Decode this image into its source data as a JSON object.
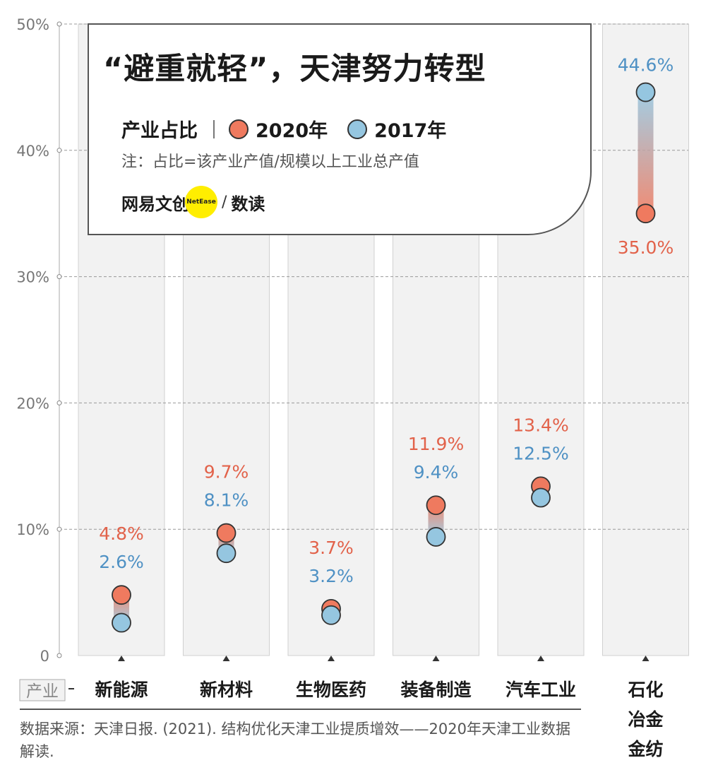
{
  "chart_data": {
    "type": "dumbbell",
    "title": "“避重就轻”，天津努力转型",
    "legend_label": "产业占比",
    "series": [
      {
        "name": "2020年",
        "color": "#ef7a5f",
        "values": [
          4.8,
          9.7,
          3.7,
          11.9,
          13.4,
          35.0
        ],
        "labels": [
          "4.8%",
          "9.7%",
          "3.7%",
          "11.9%",
          "13.4%",
          "35.0%"
        ]
      },
      {
        "name": "2017年",
        "color": "#95c6e0",
        "values": [
          2.6,
          8.1,
          3.2,
          9.4,
          12.5,
          44.6
        ],
        "labels": [
          "2.6%",
          "8.1%",
          "3.2%",
          "9.4%",
          "12.5%",
          "44.6%"
        ]
      }
    ],
    "label_colors": {
      "2020": "#e2624a",
      "2017": "#4f91c4"
    },
    "categories": [
      "新能源",
      "新材料",
      "生物医药",
      "装备制造",
      "汽车工业",
      "石化\n冶金\n金纺"
    ],
    "category_lines": [
      [
        "新能源"
      ],
      [
        "新材料"
      ],
      [
        "生物医药"
      ],
      [
        "装备制造"
      ],
      [
        "汽车工业"
      ],
      [
        "石化",
        "冶金",
        "金纺"
      ]
    ],
    "xlabel": "产业",
    "ylim": [
      0,
      50
    ],
    "yticks": [
      0,
      10,
      20,
      30,
      40,
      50
    ],
    "ytick_labels": [
      "0",
      "10%",
      "20%",
      "30%",
      "40%",
      "50%"
    ]
  },
  "note": "注：占比=该产业产值/规模以上工业总产值",
  "brand": {
    "name": "网易文创",
    "logo": "NetEase",
    "sub": "数读"
  },
  "source": "数据来源：天津日报. (2021). 结构优化天津工业提质增效——2020年天津工业数据解读."
}
